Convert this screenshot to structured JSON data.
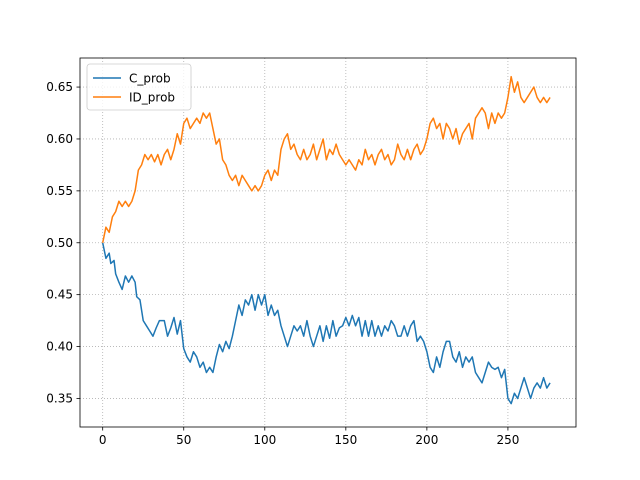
{
  "chart_data": {
    "type": "line",
    "title": "",
    "xlabel": "",
    "ylabel": "",
    "xlim": [
      -14,
      292
    ],
    "ylim": [
      0.3225,
      0.678
    ],
    "xticks": [
      0,
      50,
      100,
      150,
      200,
      250
    ],
    "yticks": [
      0.35,
      0.4,
      0.45,
      0.5,
      0.55,
      0.6,
      0.65
    ],
    "grid": true,
    "legend_position": "top-left",
    "series": [
      {
        "name": "C_prob",
        "color": "#1f77b4",
        "points": [
          [
            0,
            0.5
          ],
          [
            2,
            0.485
          ],
          [
            4,
            0.49
          ],
          [
            5,
            0.48
          ],
          [
            7,
            0.483
          ],
          [
            8,
            0.47
          ],
          [
            10,
            0.462
          ],
          [
            12,
            0.455
          ],
          [
            14,
            0.468
          ],
          [
            16,
            0.462
          ],
          [
            18,
            0.468
          ],
          [
            20,
            0.462
          ],
          [
            21,
            0.448
          ],
          [
            23,
            0.445
          ],
          [
            25,
            0.425
          ],
          [
            27,
            0.42
          ],
          [
            29,
            0.415
          ],
          [
            31,
            0.41
          ],
          [
            33,
            0.418
          ],
          [
            35,
            0.425
          ],
          [
            38,
            0.425
          ],
          [
            40,
            0.41
          ],
          [
            42,
            0.418
          ],
          [
            44,
            0.428
          ],
          [
            46,
            0.412
          ],
          [
            48,
            0.425
          ],
          [
            50,
            0.398
          ],
          [
            52,
            0.39
          ],
          [
            54,
            0.385
          ],
          [
            56,
            0.395
          ],
          [
            58,
            0.39
          ],
          [
            60,
            0.38
          ],
          [
            62,
            0.385
          ],
          [
            64,
            0.375
          ],
          [
            66,
            0.38
          ],
          [
            68,
            0.375
          ],
          [
            70,
            0.39
          ],
          [
            72,
            0.402
          ],
          [
            74,
            0.395
          ],
          [
            76,
            0.405
          ],
          [
            78,
            0.398
          ],
          [
            80,
            0.41
          ],
          [
            82,
            0.425
          ],
          [
            84,
            0.44
          ],
          [
            86,
            0.43
          ],
          [
            88,
            0.445
          ],
          [
            90,
            0.44
          ],
          [
            92,
            0.45
          ],
          [
            94,
            0.435
          ],
          [
            96,
            0.45
          ],
          [
            98,
            0.44
          ],
          [
            100,
            0.45
          ],
          [
            102,
            0.43
          ],
          [
            104,
            0.44
          ],
          [
            106,
            0.43
          ],
          [
            108,
            0.435
          ],
          [
            110,
            0.42
          ],
          [
            112,
            0.41
          ],
          [
            114,
            0.4
          ],
          [
            116,
            0.41
          ],
          [
            118,
            0.42
          ],
          [
            120,
            0.415
          ],
          [
            122,
            0.42
          ],
          [
            124,
            0.41
          ],
          [
            126,
            0.425
          ],
          [
            128,
            0.41
          ],
          [
            130,
            0.4
          ],
          [
            132,
            0.41
          ],
          [
            134,
            0.42
          ],
          [
            136,
            0.405
          ],
          [
            138,
            0.42
          ],
          [
            140,
            0.408
          ],
          [
            142,
            0.425
          ],
          [
            144,
            0.41
          ],
          [
            146,
            0.418
          ],
          [
            148,
            0.42
          ],
          [
            150,
            0.428
          ],
          [
            152,
            0.42
          ],
          [
            154,
            0.43
          ],
          [
            156,
            0.42
          ],
          [
            158,
            0.428
          ],
          [
            160,
            0.41
          ],
          [
            162,
            0.425
          ],
          [
            164,
            0.41
          ],
          [
            166,
            0.425
          ],
          [
            168,
            0.41
          ],
          [
            170,
            0.42
          ],
          [
            172,
            0.41
          ],
          [
            174,
            0.42
          ],
          [
            176,
            0.415
          ],
          [
            178,
            0.425
          ],
          [
            180,
            0.42
          ],
          [
            182,
            0.41
          ],
          [
            184,
            0.41
          ],
          [
            186,
            0.42
          ],
          [
            188,
            0.41
          ],
          [
            190,
            0.42
          ],
          [
            192,
            0.425
          ],
          [
            194,
            0.405
          ],
          [
            196,
            0.41
          ],
          [
            198,
            0.405
          ],
          [
            200,
            0.395
          ],
          [
            202,
            0.38
          ],
          [
            204,
            0.375
          ],
          [
            206,
            0.39
          ],
          [
            208,
            0.38
          ],
          [
            210,
            0.395
          ],
          [
            212,
            0.405
          ],
          [
            214,
            0.405
          ],
          [
            216,
            0.39
          ],
          [
            218,
            0.385
          ],
          [
            220,
            0.395
          ],
          [
            222,
            0.38
          ],
          [
            224,
            0.39
          ],
          [
            226,
            0.385
          ],
          [
            228,
            0.39
          ],
          [
            230,
            0.375
          ],
          [
            232,
            0.37
          ],
          [
            234,
            0.365
          ],
          [
            236,
            0.375
          ],
          [
            238,
            0.385
          ],
          [
            240,
            0.38
          ],
          [
            242,
            0.378
          ],
          [
            244,
            0.38
          ],
          [
            246,
            0.37
          ],
          [
            248,
            0.378
          ],
          [
            250,
            0.35
          ],
          [
            252,
            0.345
          ],
          [
            254,
            0.355
          ],
          [
            256,
            0.35
          ],
          [
            258,
            0.36
          ],
          [
            260,
            0.37
          ],
          [
            262,
            0.36
          ],
          [
            264,
            0.35
          ],
          [
            266,
            0.36
          ],
          [
            268,
            0.365
          ],
          [
            270,
            0.36
          ],
          [
            272,
            0.37
          ],
          [
            274,
            0.36
          ],
          [
            276,
            0.365
          ]
        ]
      },
      {
        "name": "ID_prob",
        "color": "#ff7f0e",
        "points": [
          [
            0,
            0.5
          ],
          [
            2,
            0.515
          ],
          [
            4,
            0.51
          ],
          [
            6,
            0.525
          ],
          [
            8,
            0.53
          ],
          [
            10,
            0.54
          ],
          [
            12,
            0.535
          ],
          [
            14,
            0.54
          ],
          [
            16,
            0.535
          ],
          [
            18,
            0.54
          ],
          [
            20,
            0.55
          ],
          [
            22,
            0.57
          ],
          [
            24,
            0.575
          ],
          [
            26,
            0.585
          ],
          [
            28,
            0.58
          ],
          [
            30,
            0.585
          ],
          [
            32,
            0.578
          ],
          [
            34,
            0.585
          ],
          [
            36,
            0.575
          ],
          [
            38,
            0.585
          ],
          [
            40,
            0.59
          ],
          [
            42,
            0.58
          ],
          [
            44,
            0.59
          ],
          [
            46,
            0.605
          ],
          [
            48,
            0.595
          ],
          [
            50,
            0.615
          ],
          [
            52,
            0.62
          ],
          [
            54,
            0.61
          ],
          [
            56,
            0.615
          ],
          [
            58,
            0.62
          ],
          [
            60,
            0.615
          ],
          [
            62,
            0.625
          ],
          [
            64,
            0.62
          ],
          [
            66,
            0.625
          ],
          [
            68,
            0.61
          ],
          [
            70,
            0.595
          ],
          [
            72,
            0.6
          ],
          [
            74,
            0.58
          ],
          [
            76,
            0.575
          ],
          [
            78,
            0.565
          ],
          [
            80,
            0.56
          ],
          [
            82,
            0.565
          ],
          [
            84,
            0.555
          ],
          [
            86,
            0.565
          ],
          [
            88,
            0.56
          ],
          [
            90,
            0.555
          ],
          [
            92,
            0.55
          ],
          [
            94,
            0.555
          ],
          [
            96,
            0.55
          ],
          [
            98,
            0.555
          ],
          [
            100,
            0.565
          ],
          [
            102,
            0.57
          ],
          [
            104,
            0.56
          ],
          [
            106,
            0.57
          ],
          [
            108,
            0.565
          ],
          [
            110,
            0.59
          ],
          [
            112,
            0.6
          ],
          [
            114,
            0.605
          ],
          [
            116,
            0.59
          ],
          [
            118,
            0.595
          ],
          [
            120,
            0.585
          ],
          [
            122,
            0.58
          ],
          [
            124,
            0.59
          ],
          [
            126,
            0.58
          ],
          [
            128,
            0.585
          ],
          [
            130,
            0.595
          ],
          [
            132,
            0.58
          ],
          [
            134,
            0.59
          ],
          [
            136,
            0.6
          ],
          [
            138,
            0.58
          ],
          [
            140,
            0.59
          ],
          [
            142,
            0.585
          ],
          [
            144,
            0.595
          ],
          [
            146,
            0.585
          ],
          [
            148,
            0.58
          ],
          [
            150,
            0.575
          ],
          [
            152,
            0.58
          ],
          [
            154,
            0.575
          ],
          [
            156,
            0.57
          ],
          [
            158,
            0.58
          ],
          [
            160,
            0.575
          ],
          [
            162,
            0.59
          ],
          [
            164,
            0.58
          ],
          [
            166,
            0.585
          ],
          [
            168,
            0.575
          ],
          [
            170,
            0.585
          ],
          [
            172,
            0.59
          ],
          [
            174,
            0.58
          ],
          [
            176,
            0.585
          ],
          [
            178,
            0.575
          ],
          [
            180,
            0.58
          ],
          [
            182,
            0.595
          ],
          [
            184,
            0.585
          ],
          [
            186,
            0.58
          ],
          [
            188,
            0.59
          ],
          [
            190,
            0.58
          ],
          [
            192,
            0.59
          ],
          [
            194,
            0.595
          ],
          [
            196,
            0.585
          ],
          [
            198,
            0.59
          ],
          [
            200,
            0.6
          ],
          [
            202,
            0.615
          ],
          [
            204,
            0.62
          ],
          [
            206,
            0.61
          ],
          [
            208,
            0.615
          ],
          [
            210,
            0.6
          ],
          [
            212,
            0.615
          ],
          [
            214,
            0.61
          ],
          [
            216,
            0.6
          ],
          [
            218,
            0.61
          ],
          [
            220,
            0.595
          ],
          [
            222,
            0.605
          ],
          [
            224,
            0.61
          ],
          [
            226,
            0.615
          ],
          [
            228,
            0.6
          ],
          [
            230,
            0.62
          ],
          [
            232,
            0.625
          ],
          [
            234,
            0.63
          ],
          [
            236,
            0.625
          ],
          [
            238,
            0.61
          ],
          [
            240,
            0.625
          ],
          [
            242,
            0.615
          ],
          [
            244,
            0.625
          ],
          [
            246,
            0.62
          ],
          [
            248,
            0.625
          ],
          [
            250,
            0.64
          ],
          [
            252,
            0.66
          ],
          [
            254,
            0.645
          ],
          [
            256,
            0.655
          ],
          [
            258,
            0.64
          ],
          [
            260,
            0.635
          ],
          [
            262,
            0.64
          ],
          [
            264,
            0.645
          ],
          [
            266,
            0.65
          ],
          [
            268,
            0.64
          ],
          [
            270,
            0.635
          ],
          [
            272,
            0.64
          ],
          [
            274,
            0.635
          ],
          [
            276,
            0.64
          ]
        ]
      }
    ]
  }
}
